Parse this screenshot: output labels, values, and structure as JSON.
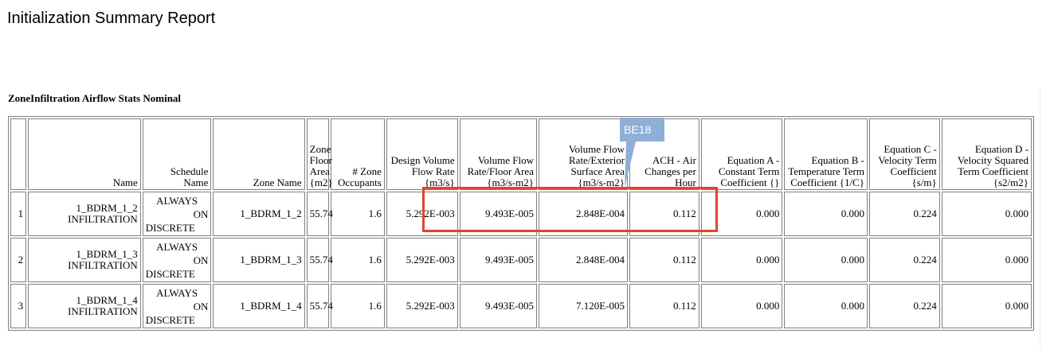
{
  "page_title": "Initialization Summary Report",
  "table_title": "ZoneInfiltration Airflow Stats Nominal",
  "columns": [
    "",
    "Name",
    "Schedule Name",
    "Zone Name",
    "Zone Floor Area {m2}",
    "# Zone Occupants",
    "Design Volume Flow Rate {m3/s}",
    "Volume Flow Rate/Floor Area {m3/s-m2}",
    "Volume Flow Rate/Exterior Surface Area {m3/s-m2}",
    "ACH - Air Changes per Hour",
    "Equation A - Constant Term Coefficient {}",
    "Equation B - Temperature Term Coefficient {1/C}",
    "Equation C - Velocity Term Coefficient {s/m}",
    "Equation D - Velocity Squared Term Coefficient {s2/m2}"
  ],
  "rows": [
    [
      "1",
      "1_BDRM_1_2 INFILTRATION",
      "ALWAYS ON DISCRETE",
      "1_BDRM_1_2",
      "55.74",
      "1.6",
      "5.292E-003",
      "9.493E-005",
      "2.848E-004",
      "0.112",
      "0.000",
      "0.000",
      "0.224",
      "0.000"
    ],
    [
      "2",
      "1_BDRM_1_3 INFILTRATION",
      "ALWAYS ON DISCRETE",
      "1_BDRM_1_3",
      "55.74",
      "1.6",
      "5.292E-003",
      "9.493E-005",
      "2.848E-004",
      "0.112",
      "0.000",
      "0.000",
      "0.224",
      "0.000"
    ],
    [
      "3",
      "1_BDRM_1_4 INFILTRATION",
      "ALWAYS ON DISCRETE",
      "1_BDRM_1_4",
      "55.74",
      "1.6",
      "5.292E-003",
      "9.493E-005",
      "7.120E-005",
      "0.112",
      "0.000",
      "0.000",
      "0.224",
      "0.000"
    ]
  ],
  "annotation": {
    "callout_label": "BE18",
    "callout_color": "#8fafd6",
    "highlight_color": "#e0452b"
  }
}
